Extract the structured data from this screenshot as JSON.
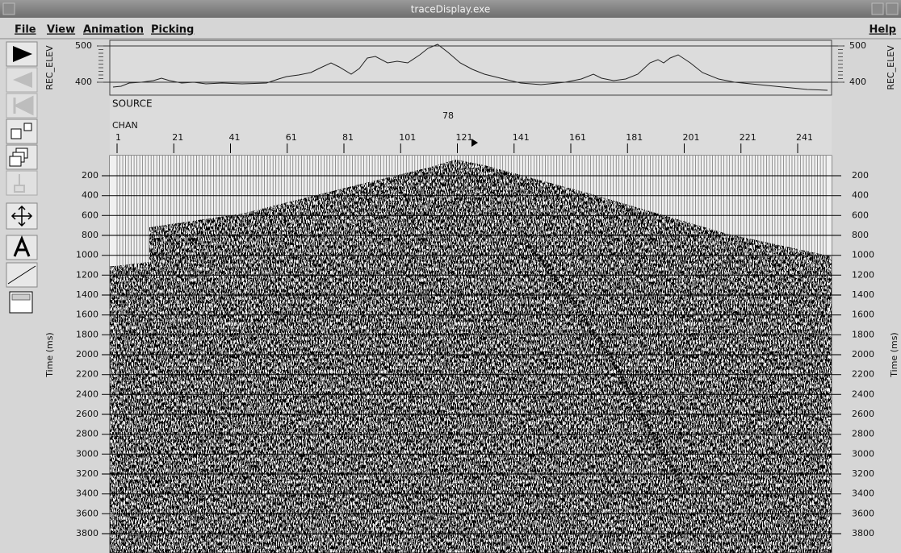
{
  "window": {
    "title": "traceDisplay.exe"
  },
  "menu": {
    "left": [
      "File",
      "View",
      "Animation",
      "Picking"
    ],
    "right": "Help"
  },
  "elevation": {
    "label": "REC_ELEV",
    "ticks": [
      500,
      400
    ]
  },
  "header": {
    "source_label": "SOURCE",
    "source_value": 78,
    "chan_label": "CHAN",
    "channels": [
      1,
      21,
      41,
      61,
      81,
      101,
      121,
      141,
      161,
      181,
      201,
      221,
      241
    ]
  },
  "time_axis": {
    "label": "Time (ms)",
    "ticks": [
      200,
      400,
      600,
      800,
      1000,
      1200,
      1400,
      1600,
      1800,
      2000,
      2200,
      2400,
      2600,
      2800,
      3000,
      3200,
      3400,
      3600,
      3800
    ]
  }
}
